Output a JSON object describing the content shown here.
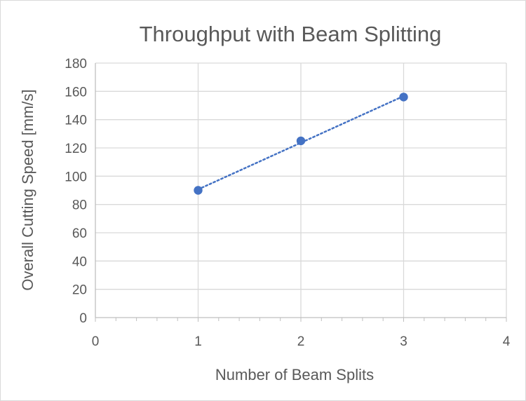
{
  "chart_data": {
    "type": "scatter",
    "title": "Throughput  with Beam Splitting",
    "xlabel": "Number of Beam Splits",
    "ylabel": "Overall  Cutting Speed [mm/s]",
    "xlim": [
      0,
      4
    ],
    "ylim": [
      0,
      180
    ],
    "x_ticks": [
      "0",
      "1",
      "2",
      "3",
      "4"
    ],
    "y_ticks": [
      "0",
      "20",
      "40",
      "60",
      "80",
      "100",
      "120",
      "140",
      "160",
      "180"
    ],
    "grid": true,
    "legend": "none",
    "series": [
      {
        "x": [
          1,
          2,
          3
        ],
        "y": [
          90,
          125,
          156
        ],
        "color": "#4472c4",
        "trendline": "linear, dotted"
      }
    ]
  }
}
